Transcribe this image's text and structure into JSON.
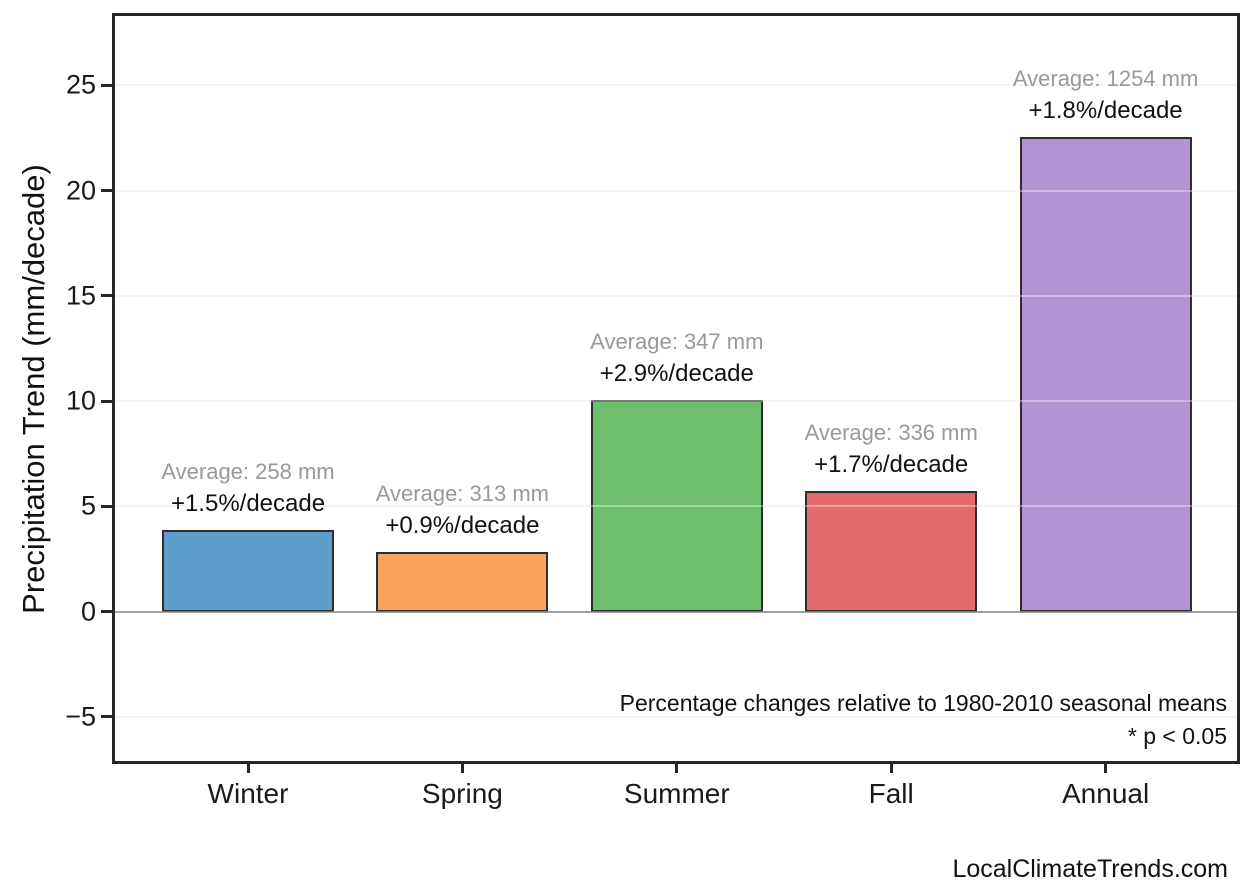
{
  "chart_data": {
    "type": "bar",
    "title": "",
    "xlabel": "",
    "ylabel": "Precipitation Trend (mm/decade)",
    "categories": [
      "Winter",
      "Spring",
      "Summer",
      "Fall",
      "Annual"
    ],
    "values": [
      3.87,
      2.82,
      10.06,
      5.71,
      22.57
    ],
    "series": [
      {
        "name": "Precipitation trend",
        "values": [
          3.87,
          2.82,
          10.06,
          5.71,
          22.57
        ]
      }
    ],
    "bars": [
      {
        "category": "Winter",
        "value": 3.87,
        "color": "#5E9DCB",
        "average_label": "Average: 258 mm",
        "change_label": "+1.5%/decade"
      },
      {
        "category": "Spring",
        "value": 2.82,
        "color": "#FCA45E",
        "average_label": "Average: 313 mm",
        "change_label": "+0.9%/decade"
      },
      {
        "category": "Summer",
        "value": 10.06,
        "color": "#6DBE6D",
        "average_label": "Average: 347 mm",
        "change_label": "+2.9%/decade"
      },
      {
        "category": "Fall",
        "value": 5.71,
        "color": "#E26B6B",
        "average_label": "Average: 336 mm",
        "change_label": "+1.7%/decade"
      },
      {
        "category": "Annual",
        "value": 22.57,
        "color": "#B294D2",
        "average_label": "Average: 1254 mm",
        "change_label": "+1.8%/decade"
      }
    ],
    "yticks": [
      -5,
      0,
      5,
      10,
      15,
      20,
      25
    ],
    "ylim": [
      -7.1,
      28.3
    ],
    "grid": true,
    "zero_line": true,
    "legend": "none",
    "annotation": {
      "line1": "Percentage changes relative to 1980-2010 seasonal means",
      "line2": "* p < 0.05"
    }
  },
  "colors": {
    "bar_edge": "#2e2e2e",
    "axis_spine": "#262626",
    "zero_line": "#6f6f6f",
    "gridline": "#efefef",
    "average_text": "#999999",
    "change_text": "#111111"
  },
  "watermark": "LocalClimateTrends.com"
}
